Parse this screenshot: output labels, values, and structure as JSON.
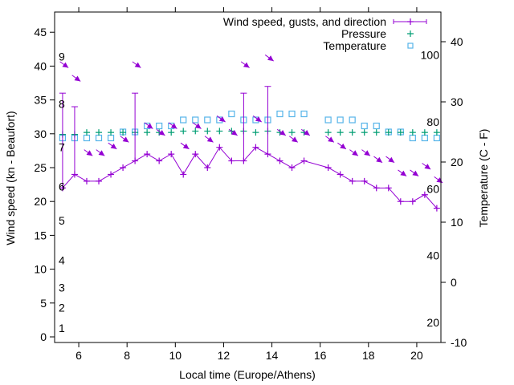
{
  "chart_data": {
    "type": "line",
    "title": "",
    "xlabel": "Local time (Europe/Athens)",
    "ylabel": "Wind speed (kn - Beaufort)",
    "y2label": "Temperature (C - F)",
    "xlim": [
      5,
      21
    ],
    "ylim": [
      -0.8,
      48
    ],
    "y2lim": [
      -10,
      49.3
    ],
    "grid": false,
    "legend_position": "top-right",
    "xticks": [
      6,
      8,
      10,
      12,
      14,
      16,
      18,
      20
    ],
    "yticks": [
      0,
      5,
      10,
      15,
      20,
      25,
      30,
      35,
      40,
      45
    ],
    "y2ticks": [
      -10,
      0,
      10,
      20,
      30,
      40
    ],
    "beaufort_labels": [
      {
        "label": "1",
        "kn": 1.3
      },
      {
        "label": "2",
        "kn": 4.3
      },
      {
        "label": "3",
        "kn": 7.3
      },
      {
        "label": "4",
        "kn": 11.3
      },
      {
        "label": "5",
        "kn": 17.2
      },
      {
        "label": "6",
        "kn": 22.2
      },
      {
        "label": "7",
        "kn": 28
      },
      {
        "label": "8",
        "kn": 34.4
      },
      {
        "label": "9",
        "kn": 41.4
      }
    ],
    "fahrenheit_labels": [
      {
        "label": "20",
        "f": 20
      },
      {
        "label": "40",
        "f": 40
      },
      {
        "label": "60",
        "f": 60
      },
      {
        "label": "80",
        "f": 80
      },
      {
        "label": "100",
        "f": 100
      }
    ],
    "x": [
      5.33,
      5.83,
      6.33,
      6.83,
      7.33,
      7.83,
      8.33,
      8.83,
      9.33,
      9.83,
      10.33,
      10.83,
      11.33,
      11.83,
      12.33,
      12.83,
      13.33,
      13.83,
      14.33,
      14.83,
      15.33,
      16.33,
      16.83,
      17.33,
      17.83,
      18.33,
      18.83,
      19.33,
      19.83,
      20.33,
      20.83
    ],
    "series": [
      {
        "name": "Wind speed, gusts, and direction",
        "axis": "y",
        "color": "#9400d3",
        "values": [
          22,
          24,
          23,
          23,
          24,
          25,
          26,
          27,
          26,
          27,
          24,
          27,
          25,
          28,
          26,
          26,
          28,
          27,
          26,
          25,
          26,
          25,
          24,
          23,
          23,
          22,
          22,
          20,
          20,
          21,
          19
        ],
        "gusts": [
          36,
          34,
          null,
          null,
          null,
          null,
          36,
          null,
          null,
          null,
          null,
          null,
          null,
          null,
          null,
          36,
          null,
          37,
          null,
          null,
          null,
          null,
          null,
          null,
          null,
          null,
          null,
          null,
          null,
          null,
          null
        ],
        "direction_deg": 306
      },
      {
        "name": "Pressure",
        "axis": "y",
        "color": "#009e73",
        "values": [
          29.9,
          29.9,
          30.2,
          30.2,
          30.2,
          30.2,
          30.2,
          30.2,
          30.2,
          30.2,
          30.4,
          30.4,
          30.4,
          30.4,
          30.4,
          30.4,
          30.2,
          30.4,
          30.2,
          30.2,
          30.2,
          30.2,
          30.2,
          30.2,
          30.2,
          30.2,
          30.2,
          30.2,
          30.2,
          30.2,
          30.2
        ]
      },
      {
        "name": "Temperature",
        "axis": "y2",
        "color": "#56b4e9",
        "values": [
          24,
          24,
          24,
          24,
          24,
          25,
          25,
          26,
          26,
          26,
          27,
          27,
          27,
          27,
          28,
          27,
          27,
          27,
          28,
          28,
          28,
          27,
          27,
          27,
          26,
          26,
          25,
          25,
          24,
          24,
          24
        ]
      }
    ]
  }
}
